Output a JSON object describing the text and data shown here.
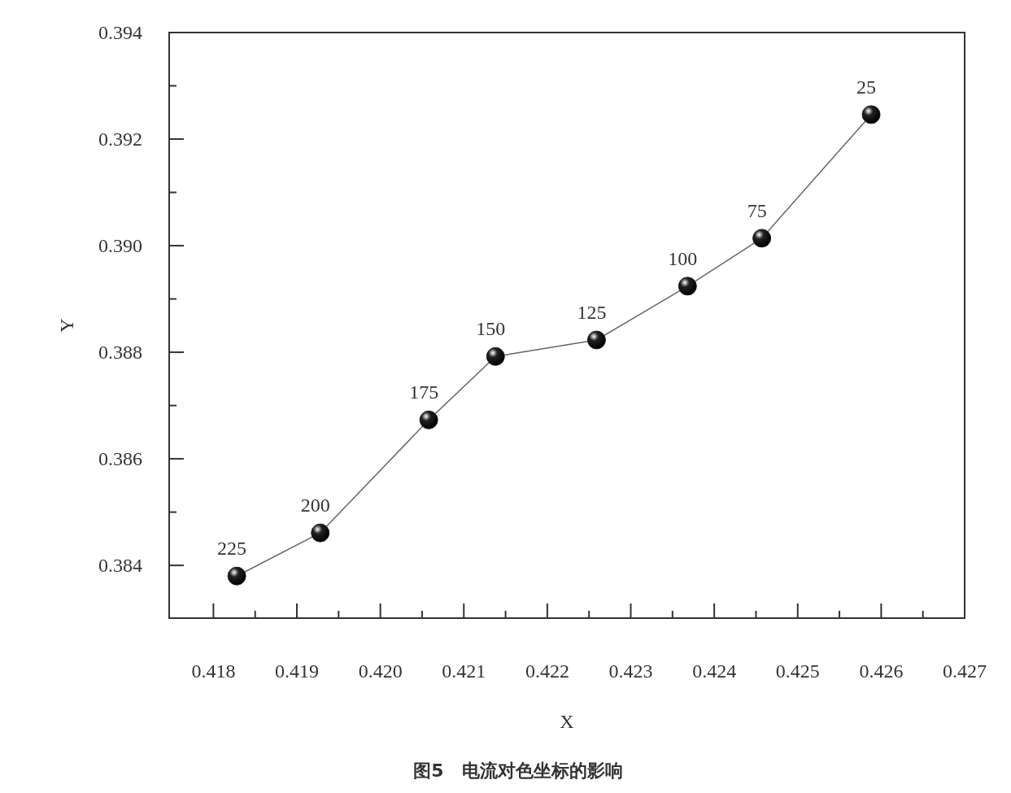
{
  "chart_data": {
    "type": "line",
    "title": "图5　电流对色坐标的影响",
    "xlabel": "X",
    "ylabel": "Y",
    "xlim": [
      0.41747,
      0.427
    ],
    "ylim": [
      0.38301,
      0.394
    ],
    "xticks": [
      0.418,
      {
        "value": 0.4185,
        "label": null
      },
      0.419,
      {
        "value": 0.4195,
        "label": null
      },
      {
        "value": 0.42,
        "label": "0.420"
      },
      {
        "value": 0.4205,
        "label": null
      },
      0.421,
      {
        "value": 0.4215,
        "label": null
      },
      0.422,
      {
        "value": 0.4225,
        "label": null
      },
      0.423,
      {
        "value": 0.4235,
        "label": null
      },
      0.424,
      {
        "value": 0.4245,
        "label": null
      },
      0.425,
      {
        "value": 0.4255,
        "label": null
      },
      0.426,
      {
        "value": 0.4265,
        "label": null
      },
      0.427
    ],
    "yticks": [
      0.384,
      {
        "value": 0.385,
        "label": null
      },
      0.386,
      {
        "value": 0.387,
        "label": null
      },
      0.388,
      {
        "value": 0.389,
        "label": null
      },
      {
        "value": 0.39,
        "label": "0.390"
      },
      {
        "value": 0.391,
        "label": null
      },
      0.392,
      {
        "value": 0.393,
        "label": null
      },
      0.394
    ],
    "series": [
      {
        "color": "#222222",
        "x": [
          0.41828,
          0.41928,
          0.42058,
          0.42138,
          0.42259,
          0.42368,
          0.42457,
          0.42588
        ],
        "values": [
          0.3838,
          0.38461,
          0.38673,
          0.38792,
          0.38823,
          0.38924,
          0.39014,
          0.39246
        ]
      }
    ],
    "marker": "circle",
    "line_style": "solid",
    "grid": false,
    "annotations": [
      {
        "text": "225",
        "x": 0.41828,
        "y": 0.3838
      },
      {
        "text": "200",
        "x": 0.41928,
        "y": 0.38461
      },
      {
        "text": "175",
        "x": 0.42058,
        "y": 0.38673
      },
      {
        "text": "150",
        "x": 0.42138,
        "y": 0.38792
      },
      {
        "text": "125",
        "x": 0.42259,
        "y": 0.38823
      },
      {
        "text": "100",
        "x": 0.42368,
        "y": 0.38924
      },
      {
        "text": "75",
        "x": 0.42457,
        "y": 0.39014
      },
      {
        "text": "25",
        "x": 0.42588,
        "y": 0.39246
      }
    ]
  }
}
